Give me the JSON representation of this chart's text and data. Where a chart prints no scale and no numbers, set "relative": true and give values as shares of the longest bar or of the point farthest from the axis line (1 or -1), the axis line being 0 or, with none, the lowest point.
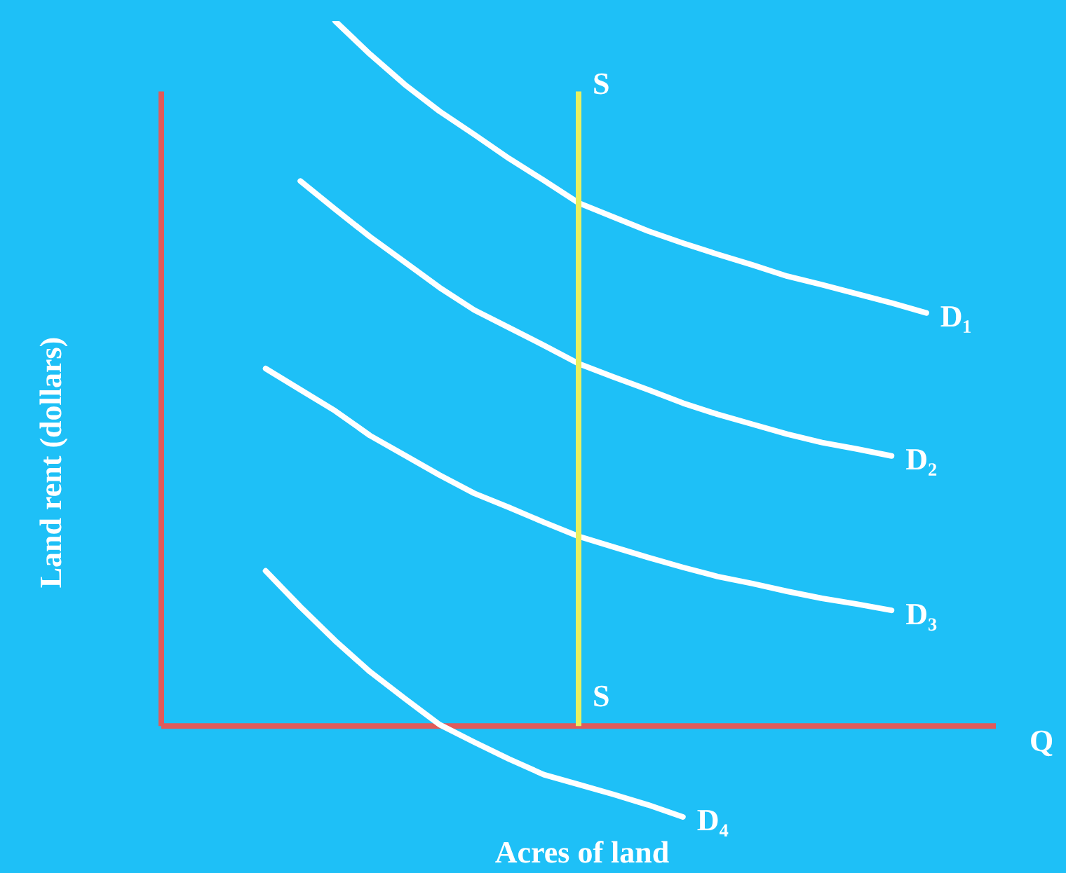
{
  "chart_data": {
    "type": "line",
    "relative": true,
    "xlabel": "Acres of land",
    "ylabel": "Land rent (dollars)",
    "legend": false,
    "marker": "none",
    "line_style": "solid",
    "categories": [
      null,
      null,
      null,
      null,
      null,
      null,
      null,
      null,
      null,
      null,
      null,
      null,
      null,
      null,
      null,
      null,
      null,
      null,
      null,
      null,
      null,
      null,
      null,
      null,
      null
    ],
    "annotations": [
      "S",
      "S",
      "Q"
    ],
    "ref_lines": [
      {
        "axis": "y",
        "value": 0,
        "color": "#e05a5a"
      }
    ],
    "series": [
      {
        "name": "D₁",
        "color": "#ffffff",
        "values": [
          null,
          null,
          null,
          null,
          null,
          1.0,
          0.953,
          0.91,
          0.872,
          0.839,
          0.805,
          0.774,
          0.742,
          0.722,
          0.702,
          0.685,
          0.669,
          0.654,
          0.638,
          0.626,
          0.613,
          0.6,
          0.586,
          null,
          null
        ]
      },
      {
        "name": "D₂",
        "color": "#ffffff",
        "values": [
          null,
          null,
          null,
          null,
          0.773,
          0.733,
          0.694,
          0.658,
          0.622,
          0.59,
          0.565,
          0.54,
          0.514,
          0.495,
          0.477,
          0.458,
          0.442,
          0.428,
          0.414,
          0.402,
          0.393,
          0.383,
          null,
          null,
          null
        ]
      },
      {
        "name": "D₃",
        "color": "#ffffff",
        "values": [
          null,
          null,
          null,
          0.507,
          0.477,
          0.447,
          0.412,
          0.384,
          0.356,
          0.33,
          0.31,
          0.289,
          0.269,
          0.254,
          0.239,
          0.225,
          0.212,
          0.202,
          0.191,
          0.181,
          0.173,
          0.164,
          null,
          null,
          null
        ]
      },
      {
        "name": "D₄",
        "color": "#ffffff",
        "values": [
          null,
          null,
          null,
          0.22,
          0.169,
          0.121,
          0.077,
          0.039,
          0.002,
          -0.023,
          -0.047,
          -0.069,
          -0.083,
          -0.097,
          -0.112,
          -0.129,
          null,
          null,
          null,
          null,
          null,
          null,
          null,
          null,
          null
        ]
      }
    ]
  }
}
